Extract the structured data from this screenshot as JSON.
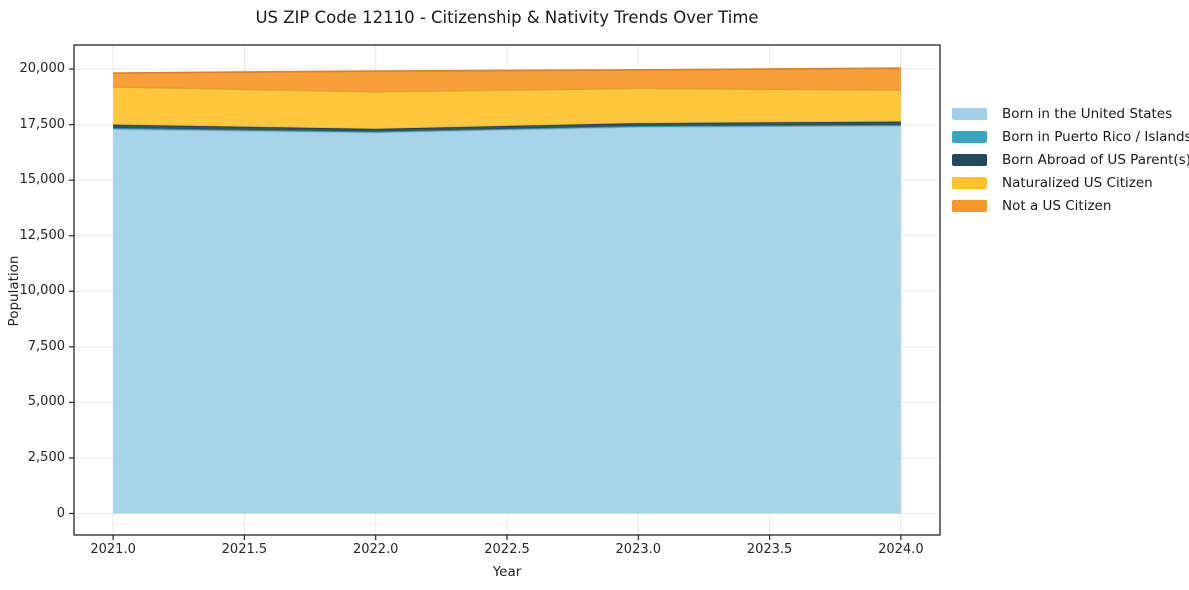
{
  "chart": {
    "title": "US ZIP Code 12110 - Citizenship & Nativity Trends Over Time",
    "xlabel": "Year",
    "ylabel": "Population"
  },
  "chart_data": {
    "type": "area",
    "stacked": true,
    "title": "US ZIP Code 12110 - Citizenship & Nativity Trends Over Time",
    "xlabel": "Year",
    "ylabel": "Population",
    "grid": true,
    "legend_position": "right",
    "x": [
      2021,
      2022,
      2023,
      2024
    ],
    "x_ticks": [
      2021.0,
      2021.5,
      2022.0,
      2022.5,
      2023.0,
      2023.5,
      2024.0
    ],
    "x_tick_labels": [
      "2021.0",
      "2021.5",
      "2022.0",
      "2022.5",
      "2023.0",
      "2023.5",
      "2024.0"
    ],
    "y_ticks": [
      0,
      2500,
      5000,
      7500,
      10000,
      12500,
      15000,
      17500,
      20000
    ],
    "y_tick_labels": [
      "0",
      "2,500",
      "5,000",
      "7,500",
      "10,000",
      "12,500",
      "15,000",
      "17,500",
      "20,000"
    ],
    "xlim": [
      2020.851,
      2024.149
    ],
    "ylim": [
      -967,
      21083
    ],
    "series": [
      {
        "name": "Born in the United States",
        "color": "#a0d1e6",
        "values": [
          17300,
          17150,
          17400,
          17450
        ]
      },
      {
        "name": "Born in Puerto Rico / Islands",
        "color": "#3aa5bf",
        "values": [
          50,
          40,
          40,
          40
        ]
      },
      {
        "name": "Born Abroad of US Parent(s)",
        "color": "#24485c",
        "values": [
          150,
          120,
          130,
          150
        ]
      },
      {
        "name": "Naturalized US Citizen",
        "color": "#fdc32e",
        "values": [
          1700,
          1670,
          1560,
          1420
        ]
      },
      {
        "name": "Not a US Citizen",
        "color": "#f8982b",
        "values": [
          620,
          930,
          830,
          980
        ]
      }
    ],
    "stack_totals": [
      19820,
      19910,
      19960,
      20040
    ],
    "colors": {
      "grid": "#e9e9e9",
      "frame": "#262626",
      "background": "#ffffff"
    }
  }
}
